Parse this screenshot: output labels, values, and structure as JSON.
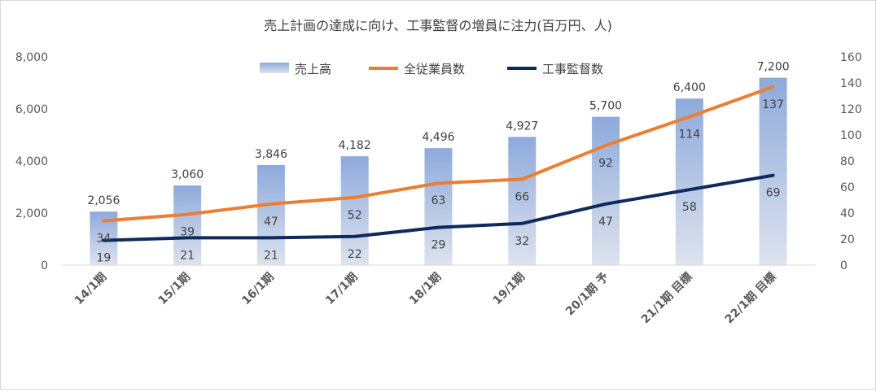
{
  "chart_data": {
    "type": "bar",
    "title": "売上計画の達成に向け、工事監督の増員に注力(百万円、人)",
    "categories": [
      "14/1期",
      "15/1期",
      "16/1期",
      "17/1期",
      "18/1期",
      "19/1期",
      "20/1期 予",
      "21/1期 目標",
      "22/1期 目標"
    ],
    "series": [
      {
        "name": "売上高",
        "type": "bar",
        "axis": "left",
        "color": "#8eaadb",
        "values": [
          2056,
          3060,
          3846,
          4182,
          4496,
          4927,
          5700,
          6400,
          7200
        ],
        "labels": [
          "2,056",
          "3,060",
          "3,846",
          "4,182",
          "4,496",
          "4,927",
          "5,700",
          "6,400",
          "7,200"
        ]
      },
      {
        "name": "全従業員数",
        "type": "line",
        "axis": "right",
        "color": "#ed7d31",
        "values": [
          34,
          39,
          47,
          52,
          63,
          66,
          92,
          114,
          137
        ],
        "labels": [
          "34",
          "39",
          "47",
          "52",
          "63",
          "66",
          "92",
          "114",
          "137"
        ]
      },
      {
        "name": "工事監督数",
        "type": "line",
        "axis": "right",
        "color": "#0e2a5c",
        "values": [
          19,
          21,
          21,
          22,
          29,
          32,
          47,
          58,
          69
        ],
        "labels": [
          "19",
          "21",
          "21",
          "22",
          "29",
          "32",
          "47",
          "58",
          "69"
        ]
      }
    ],
    "y_left": {
      "min": 0,
      "max": 8000,
      "ticks": [
        "0",
        "2,000",
        "4,000",
        "6,000",
        "8,000"
      ]
    },
    "y_right": {
      "min": 0,
      "max": 160,
      "ticks": [
        "0",
        "20",
        "40",
        "60",
        "80",
        "100",
        "120",
        "140",
        "160"
      ]
    },
    "grid": false,
    "legend": "top"
  }
}
